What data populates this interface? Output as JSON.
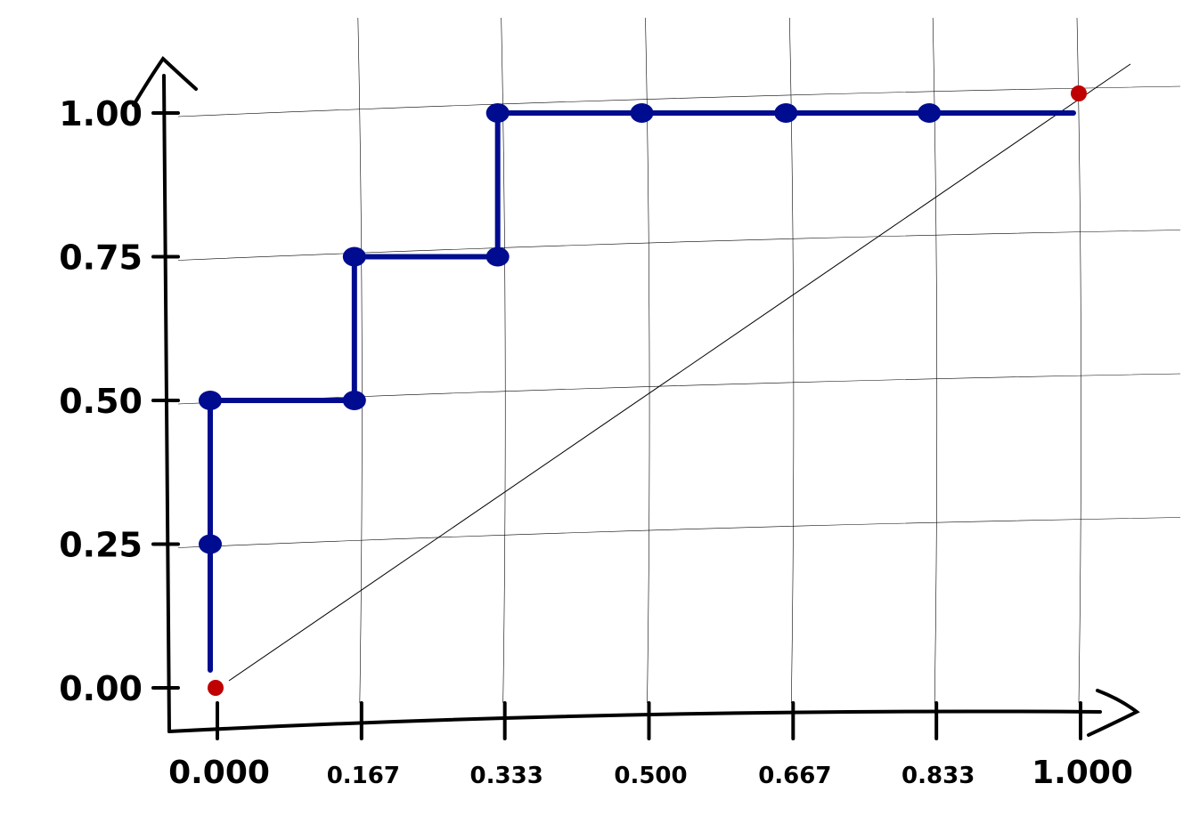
{
  "chart_data": {
    "type": "line",
    "title": "",
    "xlabel": "",
    "ylabel": "",
    "xlim": [
      0,
      1
    ],
    "ylim": [
      0,
      1
    ],
    "grid": true,
    "x_ticks": [
      "0.000",
      "0.167",
      "0.333",
      "0.500",
      "0.667",
      "0.833",
      "1.000"
    ],
    "x_tick_values": [
      0,
      0.167,
      0.333,
      0.5,
      0.667,
      0.833,
      1.0
    ],
    "y_ticks": [
      "0.00",
      "0.25",
      "0.50",
      "0.75",
      "1.00"
    ],
    "y_tick_values": [
      0,
      0.25,
      0.5,
      0.75,
      1.0
    ],
    "series": [
      {
        "style": "step",
        "color": "#000c8f",
        "x": [
          0,
          0,
          0,
          0.167,
          0.167,
          0.333,
          0.333,
          0.5,
          0.667,
          0.833,
          1.0
        ],
        "y": [
          0.0,
          0.25,
          0.5,
          0.5,
          0.75,
          0.75,
          1.0,
          1.0,
          1.0,
          1.0,
          1.0
        ],
        "markers_x": [
          0,
          0,
          0.167,
          0.167,
          0.333,
          0.333,
          0.5,
          0.667,
          0.833
        ],
        "markers_y": [
          0.25,
          0.5,
          0.5,
          0.75,
          0.75,
          1.0,
          1.0,
          1.0,
          1.0
        ]
      },
      {
        "style": "diagonal",
        "color": "#000000",
        "x": [
          0,
          1
        ],
        "y": [
          0,
          1
        ]
      },
      {
        "style": "points",
        "color": "#c00000",
        "x": [
          0,
          1
        ],
        "y": [
          0,
          1
        ]
      }
    ]
  }
}
